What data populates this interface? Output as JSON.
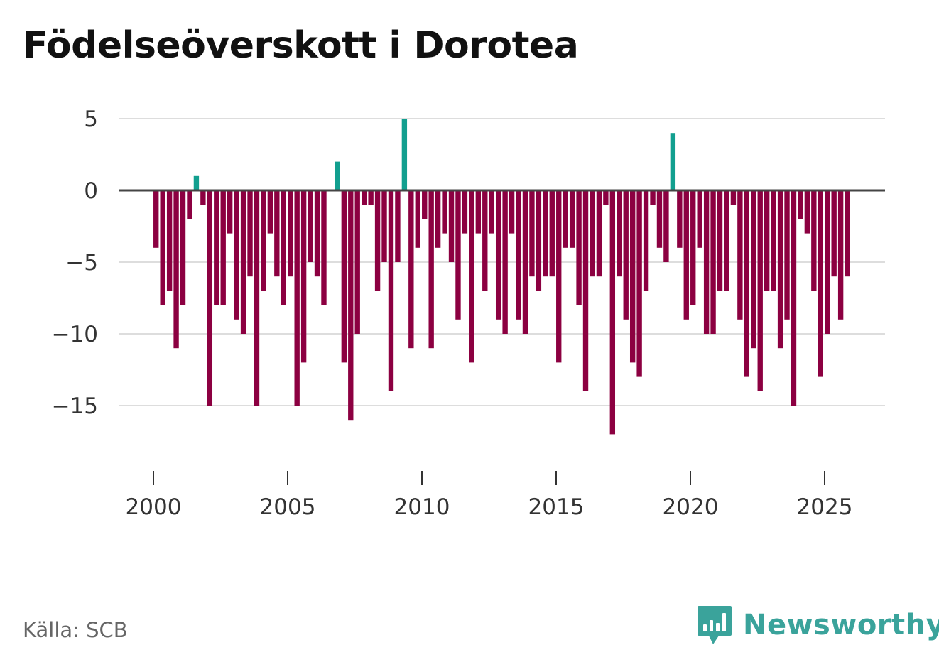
{
  "chart_data": {
    "type": "bar",
    "title": "Födelseöverskott i Dorotea",
    "xlabel": "",
    "ylabel": "",
    "x_start": 2000,
    "x_step": 0.25,
    "ylim": [
      -18.5,
      5
    ],
    "yticks": [
      5,
      0,
      -5,
      -10,
      -15
    ],
    "ytick_labels": [
      "5",
      "0",
      "−5",
      "−10",
      "−15"
    ],
    "xticks": [
      2000,
      2005,
      2010,
      2015,
      2020,
      2025
    ],
    "xtick_labels": [
      "2000",
      "2005",
      "2010",
      "2015",
      "2020",
      "2025"
    ],
    "grid": true,
    "colors": {
      "positive": "#129f8f",
      "negative": "#8c0041",
      "zero_line": "#444444",
      "grid": "#dddddd"
    },
    "values": [
      -4,
      -8,
      -7,
      -11,
      -8,
      -2,
      1,
      -1,
      -15,
      -8,
      -8,
      -3,
      -9,
      -10,
      -6,
      -15,
      -7,
      -3,
      -6,
      -8,
      -6,
      -15,
      -12,
      -5,
      -6,
      -8,
      0,
      2,
      -12,
      -16,
      -10,
      -1,
      -1,
      -7,
      -5,
      -14,
      -5,
      5,
      -11,
      -4,
      -2,
      -11,
      -4,
      -3,
      -5,
      -9,
      -3,
      -12,
      -3,
      -7,
      -3,
      -9,
      -10,
      -3,
      -9,
      -10,
      -6,
      -7,
      -6,
      -6,
      -12,
      -4,
      -4,
      -8,
      -14,
      -6,
      -6,
      -1,
      -17,
      -6,
      -9,
      -12,
      -13,
      -7,
      -1,
      -4,
      -5,
      4,
      -4,
      -9,
      -8,
      -4,
      -10,
      -10,
      -7,
      -7,
      -1,
      -9,
      -13,
      -11,
      -14,
      -7,
      -7,
      -11,
      -9,
      -15,
      -2,
      -3,
      -7,
      -13,
      -10,
      -6,
      -9,
      -6
    ]
  },
  "footer": {
    "source": "Källa: SCB",
    "brand": "Newsworthy",
    "brand_icon": "newsworthy-logo-icon",
    "brand_color": "#3aa39b"
  }
}
